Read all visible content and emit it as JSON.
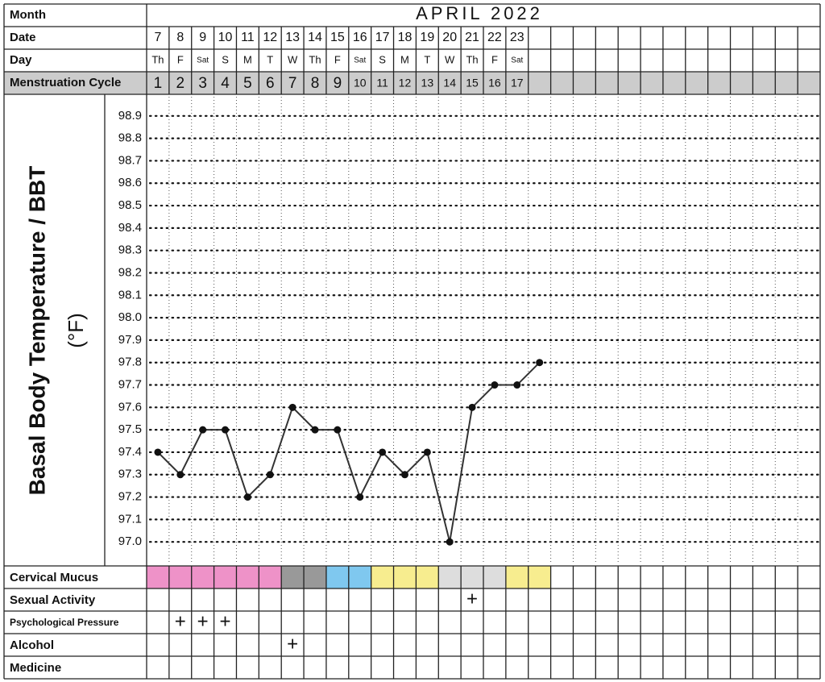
{
  "chart_data": {
    "type": "line",
    "month_label": "Month",
    "title": "APRIL 2022",
    "date_label": "Date",
    "day_label": "Day",
    "cycle_label": "Menstruation Cycle",
    "ylabel": "Basal Body Temperature / BBT",
    "yunit": "(°F)",
    "categories": [
      "7",
      "8",
      "9",
      "10",
      "11",
      "12",
      "13",
      "14",
      "15",
      "16",
      "17",
      "18",
      "19",
      "20",
      "21",
      "22",
      "23",
      null
    ],
    "days": [
      "Th",
      "F",
      "Sat",
      "S",
      "M",
      "T",
      "W",
      "Th",
      "F",
      "Sat",
      "S",
      "M",
      "T",
      "W",
      "Th",
      "F",
      "Sat",
      null
    ],
    "cycle_days": [
      1,
      2,
      3,
      4,
      5,
      6,
      7,
      8,
      9,
      10,
      11,
      12,
      13,
      14,
      15,
      16,
      17,
      null
    ],
    "values": [
      97.4,
      97.3,
      97.5,
      97.5,
      97.2,
      97.3,
      97.6,
      97.5,
      97.5,
      97.2,
      97.4,
      97.3,
      97.4,
      97.0,
      97.6,
      97.7,
      97.7,
      97.8
    ],
    "color": "#333333",
    "ylim": [
      96.9,
      99.0
    ],
    "yticks": [
      {
        "value": 97.0,
        "label": "97.0"
      },
      97.1,
      97.2,
      97.3,
      97.4,
      97.5,
      97.6,
      97.7,
      97.8,
      97.9,
      {
        "value": 98.0,
        "label": "98.0"
      },
      98.1,
      98.2,
      98.3,
      98.4,
      98.5,
      98.6,
      98.7,
      98.8,
      98.9
    ],
    "grid": true,
    "rows": [
      {
        "label": "Cervical Mucus",
        "colors": [
          "#ee92c8",
          "#ee92c8",
          "#ee92c8",
          "#ee92c8",
          "#ee92c8",
          "#ee92c8",
          "#999999",
          "#999999",
          "#7fc8ef",
          "#7fc8ef",
          "#f7ed8f",
          "#f7ed8f",
          "#f7ed8f",
          "#dddddd",
          "#dddddd",
          "#dddddd",
          "#f7ed8f",
          "#f7ed8f"
        ]
      },
      {
        "label": "Sexual Activity",
        "cells": [
          null,
          null,
          null,
          null,
          null,
          null,
          null,
          null,
          null,
          null,
          null,
          null,
          null,
          null,
          "+",
          null,
          null,
          null
        ]
      },
      {
        "label": "Psychological Pressure",
        "cells": [
          null,
          "+",
          "+",
          "+",
          null,
          null,
          null,
          null,
          null,
          null,
          null,
          null,
          null,
          null,
          null,
          null,
          null,
          null
        ]
      },
      {
        "label": "Alcohol",
        "cells": [
          null,
          null,
          null,
          null,
          null,
          null,
          "+",
          null,
          null,
          null,
          null,
          null,
          null,
          null,
          null,
          null,
          null,
          null
        ]
      },
      {
        "label": "Medicine",
        "cells": [
          null,
          null,
          null,
          null,
          null,
          null,
          null,
          null,
          null,
          null,
          null,
          null,
          null,
          null,
          null,
          null,
          null,
          null
        ]
      }
    ]
  }
}
